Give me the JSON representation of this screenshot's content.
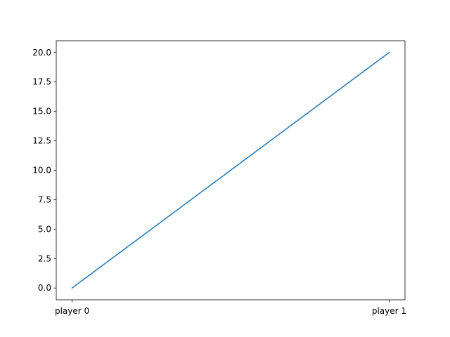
{
  "chart_data": {
    "type": "line",
    "categories": [
      "player 0",
      "player 1"
    ],
    "series": [
      {
        "values": [
          0,
          20
        ],
        "color": "#1f77b4"
      }
    ],
    "ylim": [
      -1.0,
      21.0
    ],
    "yticks": [
      0.0,
      2.5,
      5.0,
      7.5,
      10.0,
      12.5,
      15.0,
      17.5,
      20.0
    ],
    "ytick_labels": [
      "0.0",
      "2.5",
      "5.0",
      "7.5",
      "10.0",
      "12.5",
      "15.0",
      "17.5",
      "20.0"
    ],
    "grid": false,
    "title": "",
    "xlabel": "",
    "ylabel": ""
  }
}
